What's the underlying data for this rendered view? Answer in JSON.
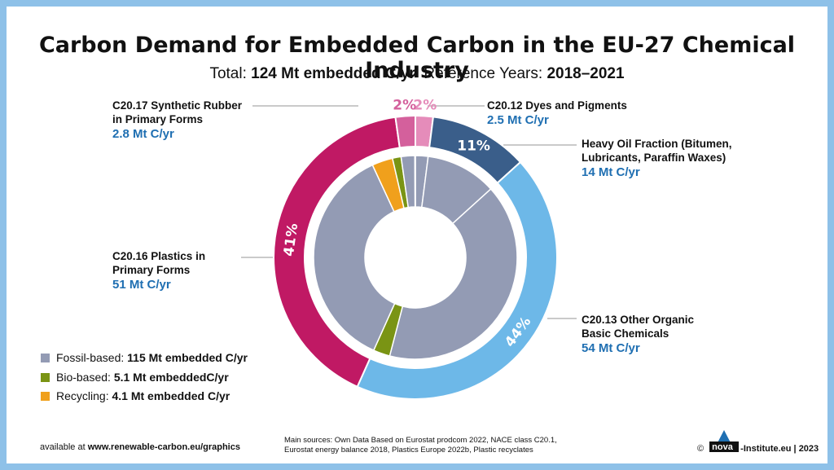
{
  "title": "Carbon Demand for Embedded Carbon in the EU-27 Chemical Industry",
  "subtitle": {
    "total_label": "Total:",
    "total_value": "124 Mt embedded C/yr",
    "ref_label": "Reference Years:",
    "ref_value": "2018–2021"
  },
  "labels": {
    "rubber": {
      "line1": "C20.17 Synthetic Rubber",
      "line2": "in Primary Forms",
      "value": "2.8 Mt C/yr"
    },
    "dyes": {
      "line1": "C20.12 Dyes and Pigments",
      "value": "2.5 Mt C/yr"
    },
    "heavy": {
      "line1": "Heavy Oil Fraction (Bitumen,",
      "line2": "Lubricants, Paraffin Waxes)",
      "value": "14 Mt C/yr"
    },
    "plastics": {
      "line1": "C20.16 Plastics in",
      "line2": "Primary Forms",
      "value": "51 Mt C/yr"
    },
    "organic": {
      "line1": "C20.13 Other Organic",
      "line2": "Basic Chemicals",
      "value": "54 Mt C/yr"
    }
  },
  "legend": [
    {
      "label": "Fossil-based:",
      "value": "115 Mt embedded C/yr",
      "color": "#939bb4"
    },
    {
      "label": "Bio-based:",
      "value": "5.1 Mt embeddedC/yr",
      "color": "#7a9414"
    },
    {
      "label": "Recycling:",
      "value": "4.1 Mt embedded C/yr",
      "color": "#f0a01c"
    }
  ],
  "footer": {
    "left_prefix": "available at",
    "left_url": "www.renewable-carbon.eu/graphics",
    "sources_line1": "Main sources: Own Data Based on Eurostat prodcom 2022, NACE class C20.1,",
    "sources_line2": "Eurostat energy balance 2018, Plastics Europe 2022b, Plastic recyclates",
    "copyright": "©",
    "logo_text": "nova",
    "right_text": "-Institute.eu | 2023"
  },
  "chart_data": {
    "type": "pie",
    "outer_ring": {
      "unit": "Mt C/yr",
      "slices": [
        {
          "name": "C20.12 Dyes and Pigments",
          "value": 2.5,
          "percent_label": "2%",
          "color": "#e58cba",
          "label_color": "#e58cba"
        },
        {
          "name": "Heavy Oil Fraction (Bitumen, Lubricants, Paraffin Waxes)",
          "value": 14,
          "percent_label": "11%",
          "color": "#3a5e8a",
          "label_color": "#ffffff"
        },
        {
          "name": "C20.13 Other Organic Basic Chemicals",
          "value": 54,
          "percent_label": "44%",
          "color": "#6db8e8",
          "label_color": "#ffffff"
        },
        {
          "name": "C20.16 Plastics in Primary Forms",
          "value": 51,
          "percent_label": "41%",
          "color": "#c01964",
          "label_color": "#ffffff"
        },
        {
          "name": "C20.17 Synthetic Rubber in Primary Forms",
          "value": 2.8,
          "percent_label": "2%",
          "color": "#d4609c",
          "label_color": "#d4609c"
        }
      ]
    },
    "inner_ring": {
      "segments": [
        {
          "group": "C20.12 Dyes and Pigments",
          "source": "Fossil-based",
          "value": 2.5,
          "color": "#939bb4"
        },
        {
          "group": "Heavy Oil Fraction",
          "source": "Fossil-based",
          "value": 14,
          "color": "#939bb4"
        },
        {
          "group": "C20.13 Other Organic Basic Chemicals",
          "source": "Fossil-based",
          "value": 50.7,
          "color": "#939bb4"
        },
        {
          "group": "C20.13 Other Organic Basic Chemicals",
          "source": "Bio-based",
          "value": 3.3,
          "color": "#7a9414"
        },
        {
          "group": "C20.16 Plastics in Primary Forms",
          "source": "Fossil-based",
          "value": 45.2,
          "color": "#939bb4"
        },
        {
          "group": "C20.16 Plastics in Primary Forms",
          "source": "Recycling",
          "value": 4.1,
          "color": "#f0a01c"
        },
        {
          "group": "C20.16 Plastics in Primary Forms",
          "source": "Bio-based",
          "value": 1.7,
          "color": "#7a9414"
        },
        {
          "group": "C20.17 Synthetic Rubber in Primary Forms",
          "source": "Fossil-based",
          "value": 2.7,
          "color": "#939bb4"
        },
        {
          "group": "C20.17 Synthetic Rubber in Primary Forms",
          "source": "Bio-based",
          "value": 0.1,
          "color": "#7a9414"
        }
      ]
    },
    "legend": [
      "Fossil-based",
      "Bio-based",
      "Recycling"
    ]
  }
}
